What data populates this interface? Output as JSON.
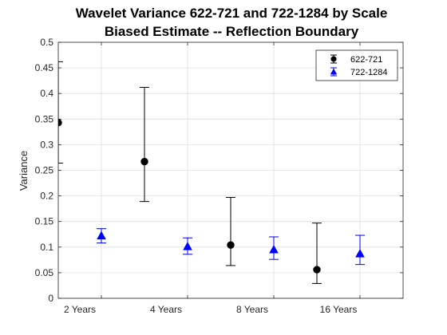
{
  "chart_data": {
    "type": "scatter",
    "title": [
      "Wavelet Variance 622-721 and 722-1284 by Scale",
      "Biased Estimate -- Reflection Boundary"
    ],
    "ylabel": "Variance",
    "xlabel": "",
    "categories": [
      "2 Years",
      "4 Years",
      "8 Years",
      "16 Years"
    ],
    "xlim": [
      0,
      4
    ],
    "ylim": [
      0,
      0.5
    ],
    "yticks": [
      0,
      0.05,
      0.1,
      0.15,
      0.2,
      0.25,
      0.3,
      0.35,
      0.4,
      0.45,
      0.5
    ],
    "ytick_labels": [
      "0",
      "0.05",
      "0.1",
      "0.15",
      "0.2",
      "0.25",
      "0.3",
      "0.35",
      "0.4",
      "0.45",
      "0.5"
    ],
    "grid": true,
    "legend_position": "top-right",
    "series": [
      {
        "name": "622-721",
        "marker": "circle",
        "color": "#000000",
        "x": [
          0,
          1,
          2,
          3
        ],
        "y": [
          0.343,
          0.267,
          0.104,
          0.056
        ],
        "lower": [
          0.264,
          0.189,
          0.064,
          0.029
        ],
        "upper": [
          0.462,
          0.412,
          0.197,
          0.147
        ]
      },
      {
        "name": "722-1284",
        "marker": "triangle",
        "color": "#0000ff",
        "x": [
          0.5,
          1.5,
          2.5,
          3.5
        ],
        "y": [
          0.122,
          0.101,
          0.095,
          0.087
        ],
        "lower": [
          0.108,
          0.086,
          0.076,
          0.066
        ],
        "upper": [
          0.136,
          0.118,
          0.12,
          0.123
        ]
      }
    ]
  }
}
